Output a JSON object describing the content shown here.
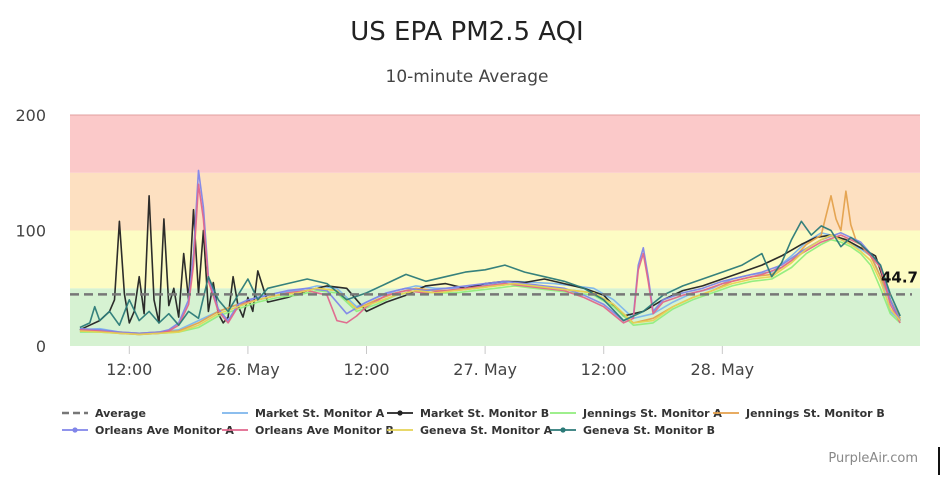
{
  "chart_data": {
    "type": "line",
    "title": "US EPA PM2.5 AQI",
    "subtitle": "10-minute Average",
    "credits": "PurpleAir.com",
    "ylim": [
      0,
      200
    ],
    "y_ticks": [
      0,
      100,
      200
    ],
    "x_range_hours": [
      -6,
      80
    ],
    "x_ticks": [
      {
        "label": "12:00",
        "hours": 0
      },
      {
        "label": "26. May",
        "hours": 12
      },
      {
        "label": "12:00",
        "hours": 24
      },
      {
        "label": "27. May",
        "hours": 36
      },
      {
        "label": "12:00",
        "hours": 48
      },
      {
        "label": "28. May",
        "hours": 60
      }
    ],
    "aqi_bands": [
      {
        "from": 0,
        "to": 50,
        "color": "#d6f2d2"
      },
      {
        "from": 50,
        "to": 100,
        "color": "#fdfcc4"
      },
      {
        "from": 100,
        "to": 150,
        "color": "#fde0c1"
      },
      {
        "from": 150,
        "to": 200,
        "color": "#fbc9c9"
      }
    ],
    "average": {
      "name": "Average",
      "value": 44.7,
      "label": "44.7",
      "color": "#777777"
    },
    "series": [
      {
        "name": "Market St. Monitor A",
        "color": "#7cb5ec",
        "marker": false,
        "x": [
          -5,
          -3,
          -1,
          1,
          3,
          5,
          7,
          9,
          11,
          13,
          15,
          17,
          19,
          21,
          23,
          25,
          27,
          29,
          31,
          33,
          35,
          37,
          39,
          41,
          43,
          45,
          47,
          49,
          51,
          53,
          55,
          57,
          59,
          61,
          63,
          65,
          67,
          68.5,
          70,
          71,
          72,
          73,
          74,
          75,
          75.5,
          76,
          76.5,
          77,
          78
        ],
        "y": [
          14,
          15,
          12,
          11,
          12,
          14,
          22,
          30,
          36,
          42,
          46,
          48,
          52,
          50,
          34,
          42,
          48,
          52,
          50,
          50,
          52,
          54,
          56,
          55,
          54,
          52,
          50,
          40,
          24,
          28,
          38,
          46,
          50,
          58,
          62,
          64,
          78,
          90,
          98,
          96,
          92,
          88,
          84,
          78,
          70,
          60,
          45,
          30,
          22
        ]
      },
      {
        "name": "Market St. Monitor B",
        "color": "#222222",
        "marker": true,
        "x": [
          -5,
          -4,
          -3,
          -2,
          -1.5,
          -1,
          -0.5,
          0,
          0.5,
          1,
          1.5,
          2,
          2.5,
          3,
          3.5,
          4,
          4.5,
          5,
          5.5,
          6,
          6.5,
          7,
          7.5,
          8,
          8.5,
          9,
          9.5,
          10,
          10.5,
          11,
          11.5,
          12,
          12.5,
          13,
          14,
          16,
          18,
          20,
          22,
          24,
          26,
          28,
          30,
          32,
          34,
          36,
          38,
          40,
          42,
          44,
          46,
          48,
          50,
          52,
          54,
          56,
          58,
          60,
          62,
          64,
          66,
          68,
          69.5,
          71,
          72.5,
          74,
          75.5,
          77,
          78
        ],
        "y": [
          14,
          18,
          22,
          30,
          40,
          108,
          45,
          20,
          30,
          60,
          28,
          130,
          40,
          20,
          110,
          35,
          50,
          25,
          80,
          40,
          118,
          45,
          100,
          30,
          55,
          28,
          20,
          25,
          60,
          35,
          25,
          42,
          30,
          65,
          38,
          42,
          48,
          52,
          50,
          30,
          38,
          44,
          52,
          54,
          50,
          54,
          56,
          55,
          58,
          54,
          50,
          44,
          26,
          30,
          40,
          48,
          52,
          58,
          64,
          70,
          78,
          88,
          94,
          96,
          92,
          85,
          78,
          40,
          22
        ]
      },
      {
        "name": "Jennings St. Monitor A",
        "color": "#90ed7d",
        "marker": false,
        "x": [
          -5,
          -3,
          -1,
          1,
          3,
          5,
          7,
          9,
          11,
          13,
          15,
          17,
          19,
          21,
          23,
          25,
          27,
          29,
          31,
          33,
          35,
          37,
          39,
          41,
          43,
          45,
          47,
          49,
          51,
          53,
          55,
          57,
          59,
          61,
          63,
          65,
          67,
          68.5,
          70,
          71,
          72,
          73,
          74,
          75,
          76,
          77,
          78
        ],
        "y": [
          12,
          12,
          11,
          10,
          11,
          12,
          16,
          26,
          32,
          38,
          42,
          44,
          48,
          46,
          30,
          36,
          44,
          48,
          46,
          46,
          48,
          50,
          52,
          50,
          48,
          46,
          44,
          34,
          18,
          20,
          32,
          40,
          46,
          52,
          56,
          58,
          68,
          80,
          88,
          92,
          90,
          86,
          80,
          70,
          50,
          28,
          20
        ]
      },
      {
        "name": "Jennings St. Monitor B",
        "color": "#e4a14c",
        "marker": false,
        "x": [
          -5,
          -3,
          -1,
          1,
          3,
          5,
          7,
          9,
          11,
          13,
          15,
          17,
          19,
          21,
          23,
          25,
          27,
          29,
          31,
          33,
          35,
          37,
          39,
          41,
          43,
          45,
          47,
          49,
          51,
          53,
          55,
          57,
          59,
          61,
          63,
          65,
          67,
          68.5,
          70,
          71,
          71.5,
          72,
          72.5,
          73,
          73.5,
          74,
          74.5,
          75,
          76,
          77,
          78
        ],
        "y": [
          13,
          13,
          12,
          11,
          12,
          13,
          20,
          30,
          36,
          40,
          44,
          46,
          50,
          48,
          32,
          40,
          46,
          50,
          48,
          48,
          50,
          52,
          54,
          52,
          50,
          48,
          46,
          36,
          20,
          24,
          34,
          42,
          48,
          56,
          60,
          62,
          74,
          88,
          96,
          130,
          110,
          100,
          134,
          105,
          92,
          88,
          82,
          78,
          60,
          40,
          24
        ]
      },
      {
        "name": "Orleans Ave Monitor A",
        "color": "#8085e9",
        "marker": true,
        "x": [
          -5,
          -3,
          -1,
          1,
          3,
          4,
          5,
          6,
          6.5,
          7,
          7.5,
          8,
          9,
          10,
          11,
          12,
          14,
          16,
          18,
          20,
          22,
          24,
          26,
          28,
          30,
          32,
          34,
          36,
          38,
          40,
          42,
          44,
          46,
          48,
          50,
          51,
          51.5,
          52,
          52.5,
          53,
          54,
          56,
          58,
          60,
          62,
          64,
          66,
          68,
          70,
          72,
          74,
          76,
          77,
          78
        ],
        "y": [
          15,
          14,
          12,
          11,
          12,
          14,
          20,
          40,
          80,
          152,
          120,
          60,
          32,
          22,
          36,
          40,
          44,
          48,
          50,
          48,
          28,
          38,
          46,
          50,
          48,
          50,
          52,
          54,
          56,
          54,
          52,
          50,
          44,
          36,
          22,
          26,
          70,
          85,
          60,
          30,
          40,
          46,
          50,
          56,
          60,
          64,
          70,
          82,
          92,
          98,
          90,
          70,
          40,
          22
        ]
      },
      {
        "name": "Orleans Ave Monitor B",
        "color": "#e0668c",
        "marker": false,
        "x": [
          -5,
          -3,
          -1,
          1,
          3,
          4,
          5,
          6,
          6.5,
          7,
          7.5,
          8,
          9,
          10,
          11,
          12,
          14,
          16,
          18,
          20,
          21,
          22,
          23,
          24,
          26,
          28,
          30,
          32,
          34,
          36,
          38,
          40,
          42,
          44,
          46,
          48,
          50,
          51,
          51.5,
          52,
          52.5,
          53,
          54,
          56,
          58,
          60,
          62,
          64,
          66,
          68,
          70,
          72,
          74,
          76,
          77,
          78
        ],
        "y": [
          14,
          13,
          11,
          10,
          11,
          13,
          18,
          36,
          70,
          140,
          110,
          56,
          30,
          20,
          34,
          38,
          42,
          46,
          48,
          44,
          22,
          20,
          26,
          34,
          44,
          48,
          46,
          48,
          50,
          52,
          54,
          52,
          50,
          48,
          42,
          34,
          20,
          24,
          66,
          80,
          56,
          28,
          38,
          44,
          48,
          54,
          58,
          62,
          68,
          80,
          90,
          96,
          88,
          68,
          36,
          20
        ]
      },
      {
        "name": "Geneva St. Monitor A",
        "color": "#e4d354",
        "marker": false,
        "x": [
          -5,
          -3,
          -1,
          1,
          3,
          5,
          7,
          9,
          11,
          13,
          15,
          17,
          19,
          21,
          23,
          25,
          27,
          29,
          31,
          33,
          35,
          37,
          39,
          41,
          43,
          45,
          47,
          49,
          51,
          53,
          55,
          57,
          59,
          61,
          63,
          65,
          67,
          68.5,
          70,
          71,
          72,
          73,
          74,
          75,
          76,
          77,
          78
        ],
        "y": [
          13,
          12,
          11,
          10,
          11,
          12,
          18,
          28,
          34,
          40,
          44,
          46,
          50,
          48,
          32,
          38,
          44,
          48,
          46,
          48,
          50,
          52,
          54,
          52,
          50,
          48,
          46,
          36,
          20,
          22,
          34,
          42,
          48,
          54,
          58,
          60,
          72,
          84,
          92,
          96,
          92,
          88,
          82,
          74,
          56,
          32,
          22
        ]
      },
      {
        "name": "Geneva St. Monitor B",
        "color": "#2b7a78",
        "marker": true,
        "x": [
          -5,
          -4,
          -3.5,
          -3,
          -2,
          -1,
          0,
          1,
          2,
          3,
          4,
          5,
          6,
          7,
          8,
          9,
          10,
          11,
          12,
          13,
          14,
          16,
          18,
          20,
          22,
          24,
          26,
          28,
          30,
          32,
          34,
          36,
          38,
          40,
          42,
          44,
          46,
          48,
          50,
          52,
          54,
          56,
          58,
          60,
          62,
          64,
          65,
          66,
          67,
          68,
          69,
          70,
          71,
          72,
          73,
          74,
          75,
          76,
          77,
          78
        ],
        "y": [
          16,
          20,
          34,
          22,
          30,
          18,
          40,
          22,
          30,
          20,
          28,
          18,
          30,
          24,
          60,
          40,
          30,
          44,
          58,
          40,
          50,
          54,
          58,
          54,
          40,
          46,
          54,
          62,
          56,
          60,
          64,
          66,
          70,
          64,
          60,
          56,
          50,
          40,
          22,
          30,
          44,
          52,
          58,
          64,
          70,
          80,
          60,
          72,
          92,
          108,
          96,
          104,
          100,
          86,
          94,
          88,
          80,
          70,
          45,
          26
        ]
      }
    ]
  }
}
